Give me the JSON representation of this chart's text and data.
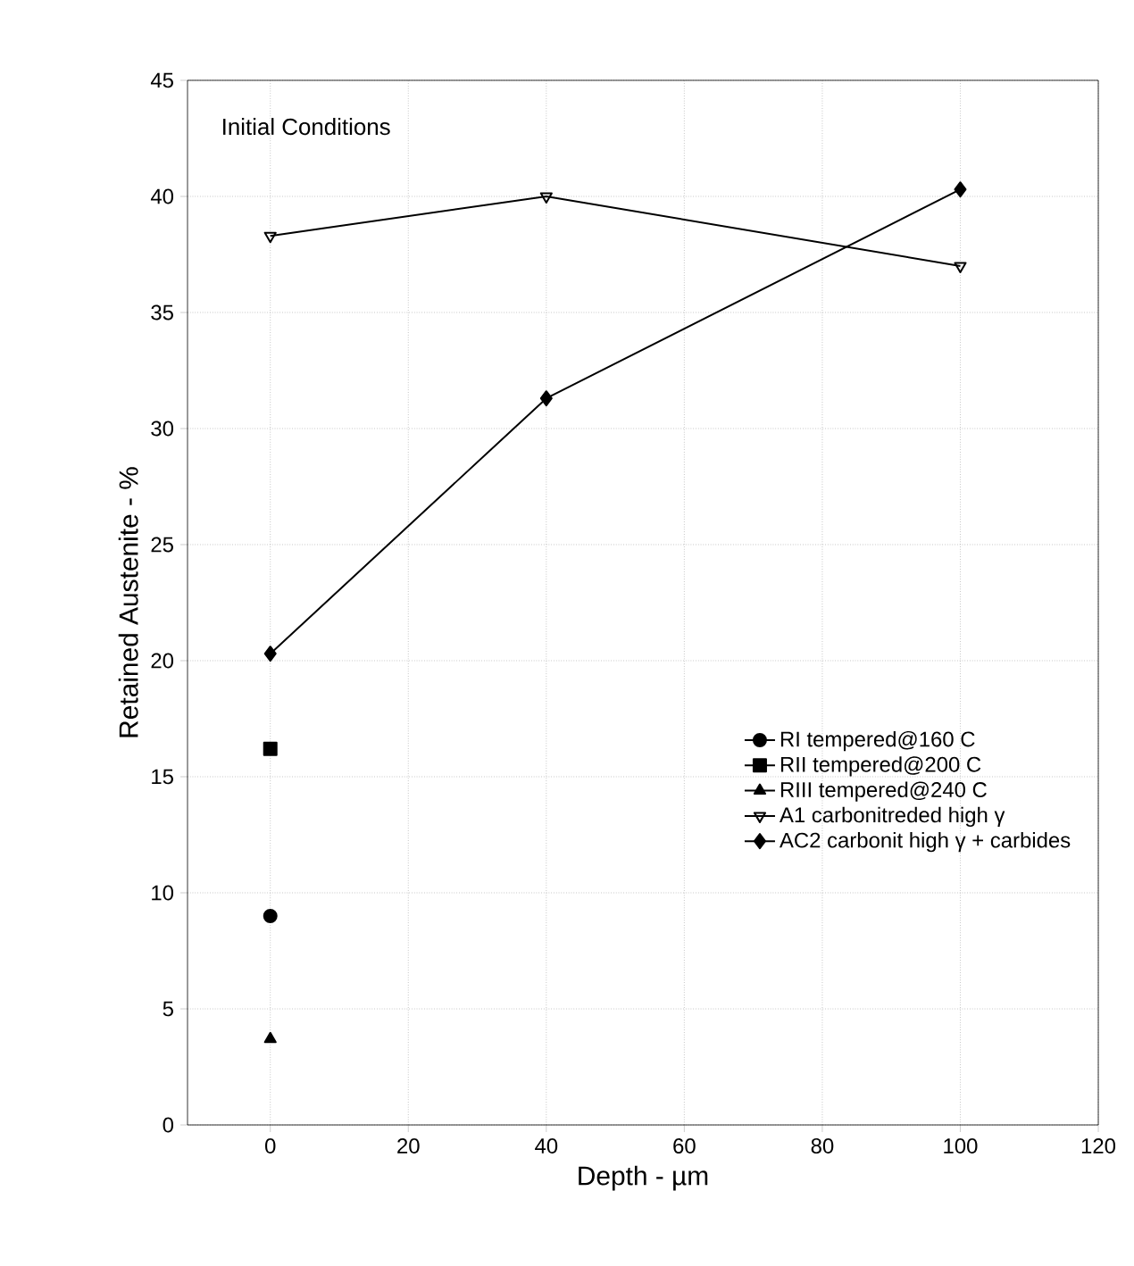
{
  "chart_data": {
    "type": "line",
    "xlabel": "Depth - µm",
    "ylabel": "Retained Austenite - %",
    "annotations": [
      "Initial Conditions"
    ],
    "xlim": [
      -12,
      120
    ],
    "ylim": [
      0,
      45
    ],
    "xticks": [
      0,
      20,
      40,
      60,
      80,
      100,
      120
    ],
    "yticks": [
      0,
      5,
      10,
      15,
      20,
      25,
      30,
      35,
      40,
      45
    ],
    "grid": true,
    "legend": "right",
    "series": [
      {
        "name": "RI tempered@160 C",
        "color": "#000000",
        "marker": "circle",
        "x": [
          0
        ],
        "values": [
          9
        ]
      },
      {
        "name": "RII tempered@200 C",
        "color": "#000000",
        "marker": "square",
        "x": [
          0
        ],
        "values": [
          16.2
        ]
      },
      {
        "name": "RIII tempered@240 C",
        "color": "#000000",
        "marker": "triangle",
        "x": [
          0
        ],
        "values": [
          3.7
        ]
      },
      {
        "name": "A1 carbonitreded high γ",
        "color": "#000000",
        "marker": "triangle-down-open",
        "x": [
          0,
          40,
          100
        ],
        "values": [
          38.3,
          40,
          37
        ]
      },
      {
        "name": "AC2 carbonit high γ + carbides",
        "color": "#000000",
        "marker": "diamond",
        "x": [
          0,
          40,
          100
        ],
        "values": [
          20.3,
          31.3,
          40.3
        ]
      }
    ]
  }
}
